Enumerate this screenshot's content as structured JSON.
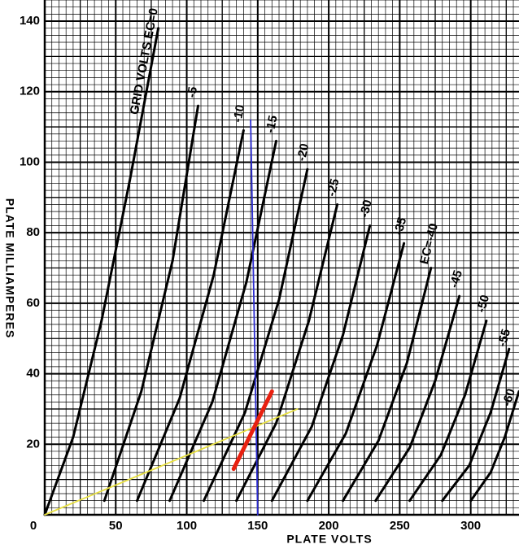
{
  "chart_data": {
    "type": "line",
    "x_label": "PLATE VOLTS",
    "y_label": "PLATE MILLIAMPERES",
    "xlim": [
      0,
      334
    ],
    "ylim": [
      0,
      146
    ],
    "xticks": [
      0,
      50,
      100,
      150,
      200,
      250,
      300
    ],
    "yticks": [
      0,
      20,
      40,
      60,
      80,
      100,
      120,
      140
    ],
    "grid": true,
    "series": [
      {
        "name": "GRID VOLTS EC=0",
        "color": "#000000",
        "x": [
          0,
          20,
          40,
          60,
          80
        ],
        "values": [
          0,
          22,
          55,
          95,
          138
        ]
      },
      {
        "name": "-5",
        "color": "#000000",
        "x": [
          42,
          68,
          90,
          108
        ],
        "values": [
          4,
          35,
          72,
          116
        ]
      },
      {
        "name": "-10",
        "color": "#000000",
        "x": [
          65,
          95,
          119,
          140
        ],
        "values": [
          4,
          33,
          68,
          109
        ]
      },
      {
        "name": "-15",
        "color": "#000000",
        "x": [
          88,
          118,
          142,
          163
        ],
        "values": [
          4,
          32,
          66,
          106
        ]
      },
      {
        "name": "-20",
        "color": "#000000",
        "x": [
          112,
          141,
          165,
          185
        ],
        "values": [
          4,
          29,
          61,
          98
        ]
      },
      {
        "name": "-25",
        "color": "#000000",
        "x": [
          135,
          163,
          186,
          206
        ],
        "values": [
          4,
          26,
          55,
          88
        ]
      },
      {
        "name": "-30",
        "color": "#000000",
        "x": [
          160,
          188,
          210,
          229
        ],
        "values": [
          4,
          25,
          51,
          82
        ]
      },
      {
        "name": "-35",
        "color": "#000000",
        "x": [
          185,
          212,
          234,
          253
        ],
        "values": [
          4,
          23,
          48,
          77
        ]
      },
      {
        "name": "EC=-40",
        "color": "#000000",
        "x": [
          210,
          235,
          255,
          272
        ],
        "values": [
          4,
          21,
          43,
          70
        ]
      },
      {
        "name": "-45",
        "color": "#000000",
        "x": [
          233,
          257,
          275,
          292
        ],
        "values": [
          4,
          19,
          38,
          62
        ]
      },
      {
        "name": "-50",
        "color": "#000000",
        "x": [
          257,
          279,
          296,
          311
        ],
        "values": [
          4,
          17,
          34,
          55
        ]
      },
      {
        "name": "-55",
        "color": "#000000",
        "x": [
          280,
          299,
          314,
          327
        ],
        "values": [
          4,
          14,
          29,
          47
        ]
      },
      {
        "name": "-60",
        "color": "#000000",
        "x": [
          300,
          314,
          324,
          334
        ],
        "values": [
          4,
          12,
          22,
          35
        ]
      },
      {
        "color": "#2a2ad0",
        "x": [
          145,
          150
        ],
        "values": [
          112,
          0
        ]
      },
      {
        "color": "#e8e040",
        "x": [
          0,
          178
        ],
        "values": [
          0,
          30
        ]
      },
      {
        "color": "#e82010",
        "x": [
          133,
          160
        ],
        "values": [
          13,
          35
        ]
      }
    ]
  }
}
